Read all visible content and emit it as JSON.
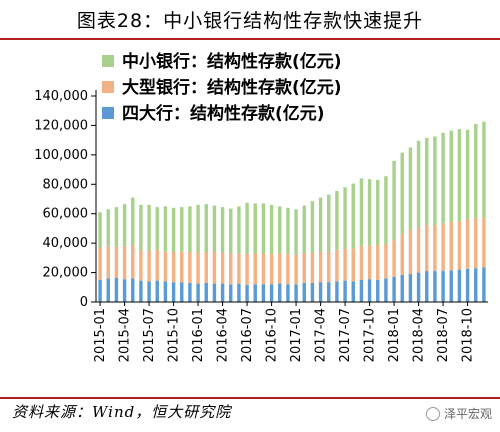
{
  "header": {
    "title": "图表28：中小银行结构性存款快速提升"
  },
  "footer": {
    "source": "资料来源：Wind，恒大研究院",
    "watermark": "泽平宏观"
  },
  "colors": {
    "small": "#a9d18e",
    "large": "#f4b183",
    "big4": "#5b9bd5",
    "axis": "#000000",
    "rule": "#b02020"
  },
  "chart_data": {
    "type": "bar",
    "stacked": true,
    "categories": [
      "2015-01",
      "2015-02",
      "2015-03",
      "2015-04",
      "2015-05",
      "2015-06",
      "2015-07",
      "2015-08",
      "2015-09",
      "2015-10",
      "2015-11",
      "2015-12",
      "2016-01",
      "2016-02",
      "2016-03",
      "2016-04",
      "2016-05",
      "2016-06",
      "2016-07",
      "2016-08",
      "2016-09",
      "2016-10",
      "2016-11",
      "2016-12",
      "2017-01",
      "2017-02",
      "2017-03",
      "2017-04",
      "2017-05",
      "2017-06",
      "2017-07",
      "2017-08",
      "2017-09",
      "2017-10",
      "2017-11",
      "2017-12",
      "2018-01",
      "2018-02",
      "2018-03",
      "2018-04",
      "2018-05",
      "2018-06",
      "2018-07",
      "2018-08",
      "2018-09",
      "2018-10",
      "2018-11",
      "2018-12"
    ],
    "tick_labels": [
      "2015-01",
      "2015-04",
      "2015-07",
      "2015-10",
      "2016-01",
      "2016-04",
      "2016-07",
      "2016-10",
      "2017-01",
      "2017-04",
      "2017-07",
      "2017-10",
      "2018-01",
      "2018-04",
      "2018-07",
      "2018-10"
    ],
    "series": [
      {
        "name": "四大行：结构性存款(亿元)",
        "color_key": "big4",
        "values": [
          15000,
          16000,
          16500,
          15500,
          16000,
          14500,
          14000,
          14500,
          14000,
          13500,
          13500,
          13000,
          12500,
          13000,
          12500,
          12500,
          12000,
          12500,
          11500,
          12000,
          12000,
          12000,
          12500,
          12000,
          12000,
          13000,
          13000,
          13500,
          13500,
          14000,
          14500,
          14000,
          15000,
          15500,
          15000,
          16000,
          17000,
          18500,
          19000,
          20000,
          21000,
          21000,
          21000,
          21500,
          22000,
          22500,
          23000,
          23500
        ]
      },
      {
        "name": "大型银行：结构性存款(亿元)",
        "color_key": "large",
        "values": [
          22000,
          22000,
          21500,
          22500,
          22000,
          20500,
          21000,
          21000,
          20500,
          20500,
          21000,
          21000,
          21500,
          21000,
          21500,
          21000,
          21000,
          20500,
          21500,
          21000,
          21000,
          20500,
          20500,
          20500,
          20000,
          20000,
          20500,
          20500,
          20500,
          21500,
          21500,
          22500,
          23000,
          23000,
          23500,
          23500,
          25000,
          27500,
          30000,
          31000,
          31500,
          31000,
          32500,
          33000,
          33000,
          33500,
          34000,
          33500
        ]
      },
      {
        "name": "中小银行：结构性存款(亿元)",
        "color_key": "small",
        "values": [
          24000,
          25000,
          26500,
          28500,
          33000,
          31000,
          31000,
          29000,
          30500,
          30000,
          30000,
          31000,
          32000,
          32500,
          31500,
          31000,
          30500,
          32000,
          34500,
          34000,
          34000,
          33500,
          32000,
          31500,
          31000,
          32500,
          35000,
          37000,
          39000,
          40000,
          42000,
          44000,
          46000,
          45000,
          44500,
          46000,
          54000,
          55500,
          56000,
          58500,
          59000,
          60500,
          61500,
          62000,
          62500,
          61000,
          64000,
          65500
        ]
      }
    ],
    "legend_order": [
      2,
      1,
      0
    ],
    "legend_position": "top-left",
    "ylim": [
      0,
      140000
    ],
    "yticks": [
      0,
      20000,
      40000,
      60000,
      80000,
      100000,
      120000,
      140000
    ],
    "ytick_labels": [
      "0",
      "20,000",
      "40,000",
      "60,000",
      "80,000",
      "100,000",
      "120,000",
      "140,000"
    ],
    "grid": false
  }
}
